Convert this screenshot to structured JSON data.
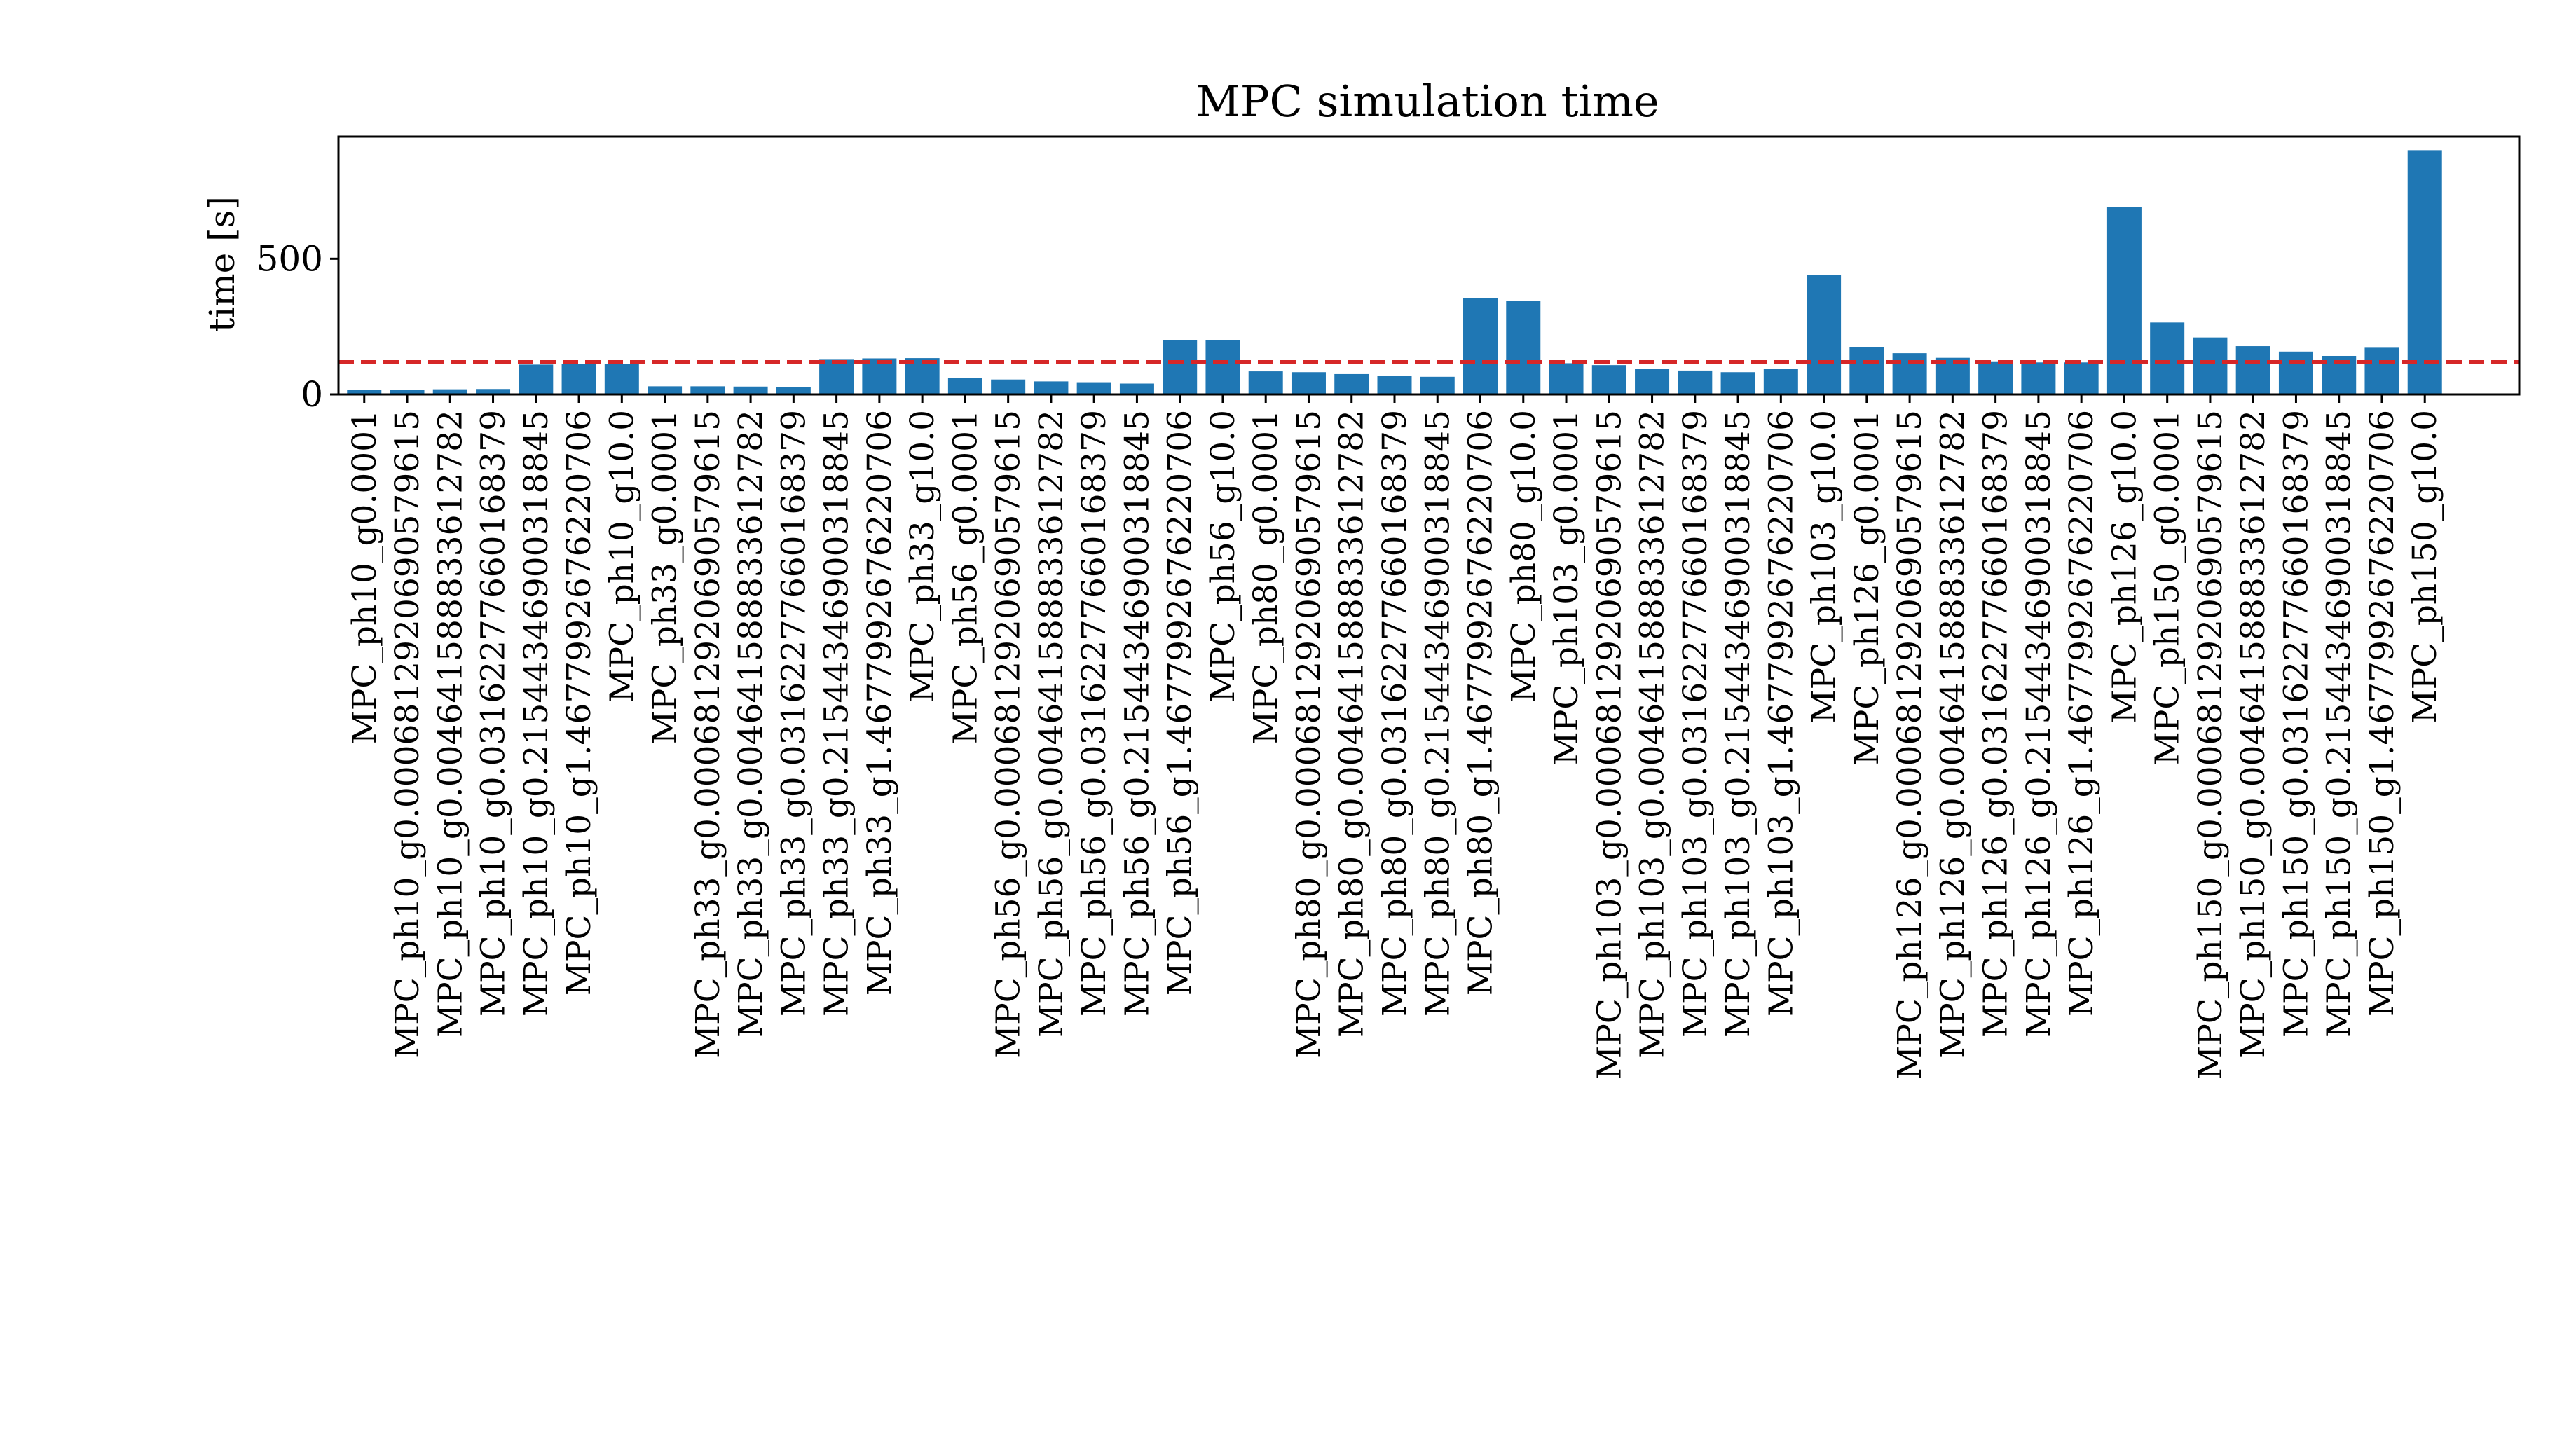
{
  "chart_data": {
    "type": "bar",
    "title": "MPC simulation time",
    "xlabel": "",
    "ylabel": "time [s]",
    "ylim": [
      0,
      950
    ],
    "yticks": [
      0,
      500
    ],
    "grid": false,
    "bar_color": "#1f77b4",
    "reference_line": {
      "value": 120,
      "color": "#d62728",
      "style": "dashed"
    },
    "categories": [
      "MPC_ph10_g0.0001",
      "MPC_ph10_g0.0006812920690579615",
      "MPC_ph10_g0.004641588833612782",
      "MPC_ph10_g0.03162277660168379",
      "MPC_ph10_g0.21544346900318845",
      "MPC_ph10_g1.4677992676220706",
      "MPC_ph10_g10.0",
      "MPC_ph33_g0.0001",
      "MPC_ph33_g0.0006812920690579615",
      "MPC_ph33_g0.004641588833612782",
      "MPC_ph33_g0.03162277660168379",
      "MPC_ph33_g0.21544346900318845",
      "MPC_ph33_g1.4677992676220706",
      "MPC_ph33_g10.0",
      "MPC_ph56_g0.0001",
      "MPC_ph56_g0.0006812920690579615",
      "MPC_ph56_g0.004641588833612782",
      "MPC_ph56_g0.03162277660168379",
      "MPC_ph56_g0.21544346900318845",
      "MPC_ph56_g1.4677992676220706",
      "MPC_ph56_g10.0",
      "MPC_ph80_g0.0001",
      "MPC_ph80_g0.0006812920690579615",
      "MPC_ph80_g0.004641588833612782",
      "MPC_ph80_g0.03162277660168379",
      "MPC_ph80_g0.21544346900318845",
      "MPC_ph80_g1.4677992676220706",
      "MPC_ph80_g10.0",
      "MPC_ph103_g0.0001",
      "MPC_ph103_g0.0006812920690579615",
      "MPC_ph103_g0.004641588833612782",
      "MPC_ph103_g0.03162277660168379",
      "MPC_ph103_g0.21544346900318845",
      "MPC_ph103_g1.4677992676220706",
      "MPC_ph103_g10.0",
      "MPC_ph126_g0.0001",
      "MPC_ph126_g0.0006812920690579615",
      "MPC_ph126_g0.004641588833612782",
      "MPC_ph126_g0.03162277660168379",
      "MPC_ph126_g0.21544346900318845",
      "MPC_ph126_g1.4677992676220706",
      "MPC_ph126_g10.0",
      "MPC_ph150_g0.0001",
      "MPC_ph150_g0.0006812920690579615",
      "MPC_ph150_g0.004641588833612782",
      "MPC_ph150_g0.03162277660168379",
      "MPC_ph150_g0.21544346900318845",
      "MPC_ph150_g1.4677992676220706",
      "MPC_ph150_g10.0"
    ],
    "values": [
      18,
      18,
      19,
      20,
      110,
      112,
      112,
      30,
      30,
      29,
      28,
      128,
      133,
      134,
      60,
      55,
      48,
      45,
      40,
      200,
      200,
      85,
      82,
      75,
      68,
      65,
      355,
      345,
      115,
      108,
      95,
      88,
      82,
      95,
      440,
      175,
      152,
      135,
      122,
      118,
      118,
      690,
      265,
      210,
      178,
      158,
      142,
      172,
      900
    ]
  }
}
